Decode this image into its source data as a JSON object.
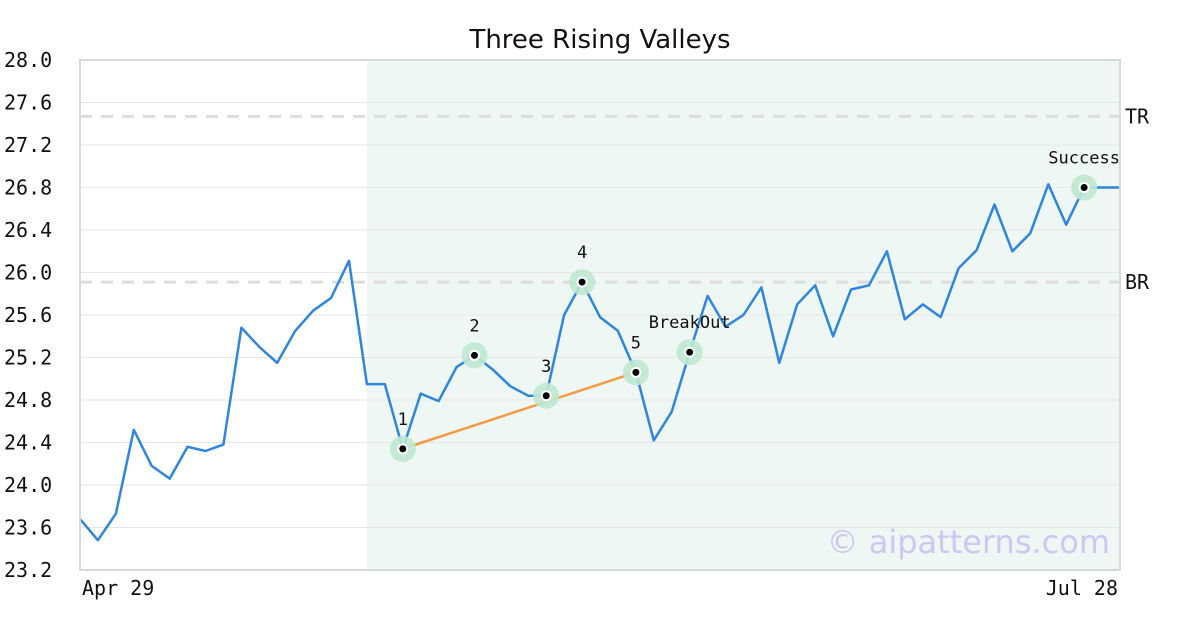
{
  "chart_data": {
    "type": "line",
    "title": "Three Rising Valleys",
    "xlabel": "",
    "ylabel": "",
    "ylim": [
      23.2,
      28.0
    ],
    "yticks": [
      "23.2",
      "23.6",
      "24.0",
      "24.4",
      "24.8",
      "25.2",
      "25.6",
      "26.0",
      "26.4",
      "26.8",
      "27.2",
      "27.6",
      "28.0"
    ],
    "x_tick_labels": [
      "Apr 29",
      "Jul 28"
    ],
    "grid": true,
    "series": [
      {
        "values": [
          23.68,
          23.48,
          23.73,
          24.52,
          24.18,
          24.06,
          24.36,
          24.32,
          24.38,
          25.48,
          25.3,
          25.15,
          25.45,
          25.64,
          25.76,
          26.11,
          24.95,
          24.95,
          24.34,
          24.86,
          24.79,
          25.11,
          25.22,
          25.09,
          24.93,
          24.84,
          24.84,
          25.6,
          25.91,
          25.58,
          25.45,
          25.06,
          24.42,
          24.69,
          25.25,
          25.78,
          25.49,
          25.6,
          25.86,
          25.15,
          25.7,
          25.88,
          25.4,
          25.84,
          25.88,
          26.2,
          25.56,
          25.7,
          25.58,
          26.04,
          26.21,
          26.64,
          26.2,
          26.37,
          26.83,
          26.45,
          26.8,
          26.8,
          26.8
        ]
      }
    ],
    "shaded_region": {
      "start_index": 16,
      "end_index": 58
    },
    "reference_lines": [
      {
        "label": "TR",
        "value": 27.47
      },
      {
        "label": "BR",
        "value": 25.91
      }
    ],
    "annotations": [
      {
        "label": "1",
        "index": 18,
        "value": 24.34
      },
      {
        "label": "2",
        "index": 22,
        "value": 25.22
      },
      {
        "label": "3",
        "index": 26,
        "value": 24.84
      },
      {
        "label": "4",
        "index": 28,
        "value": 25.91
      },
      {
        "label": "5",
        "index": 31,
        "value": 25.06
      },
      {
        "label": "BreakOut",
        "index": 34,
        "value": 25.25
      },
      {
        "label": "Success",
        "index": 56,
        "value": 26.8
      }
    ],
    "trend_line": {
      "from_index": 18,
      "to_index": 31
    },
    "watermark": "© aipatterns.com",
    "colors": {
      "line": "#2e86de",
      "shade": "#eef7f3",
      "marker_halo": "#bfe8d2",
      "trend": "#f39c45",
      "reference": "#dddddd",
      "grid": "#e6e6e6",
      "frame": "#d9d9d9"
    }
  }
}
